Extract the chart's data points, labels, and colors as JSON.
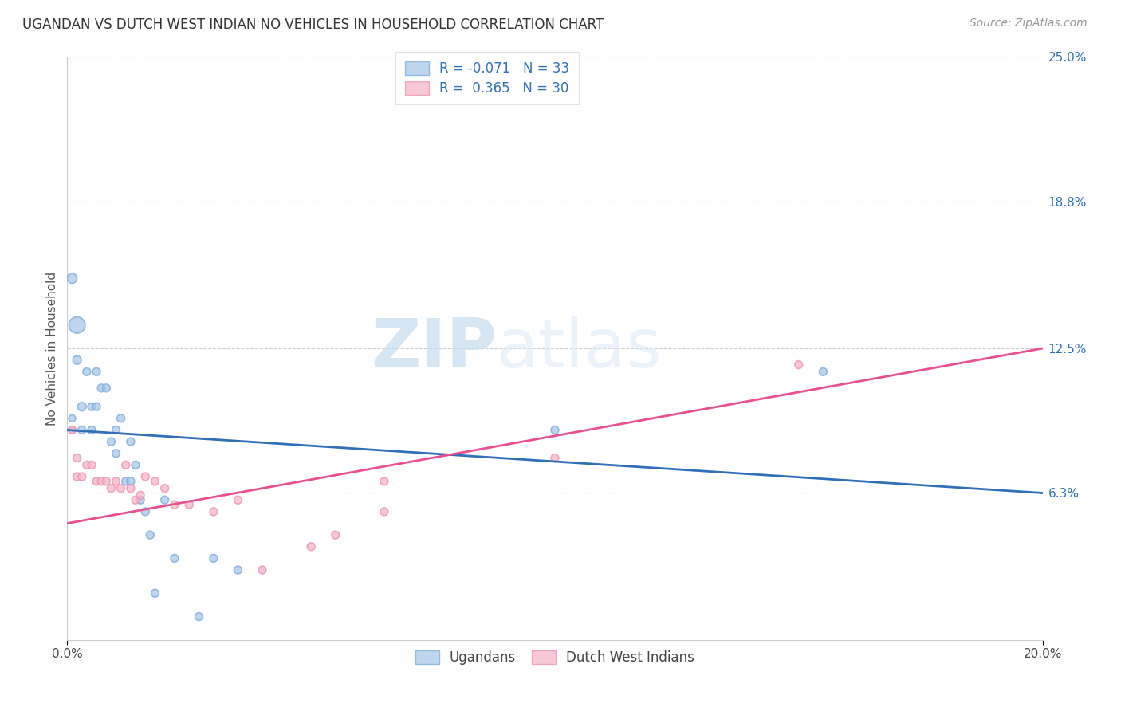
{
  "title": "UGANDAN VS DUTCH WEST INDIAN NO VEHICLES IN HOUSEHOLD CORRELATION CHART",
  "source": "Source: ZipAtlas.com",
  "ylabel": "No Vehicles in Household",
  "xmin": 0.0,
  "xmax": 0.2,
  "ymin": 0.0,
  "ymax": 0.25,
  "yticks": [
    0.063,
    0.125,
    0.188,
    0.25
  ],
  "ytick_labels": [
    "6.3%",
    "12.5%",
    "18.8%",
    "25.0%"
  ],
  "xticks": [
    0.0,
    0.2
  ],
  "xtick_labels": [
    "0.0%",
    "20.0%"
  ],
  "legend_labels": [
    "Ugandans",
    "Dutch West Indians"
  ],
  "blue_color": "#a8c8e8",
  "pink_color": "#f4b8c8",
  "blue_edge_color": "#7aacda",
  "pink_edge_color": "#f090b0",
  "blue_line_color": "#3070b8",
  "pink_line_color": "#e85090",
  "background_color": "#ffffff",
  "watermark_zip": "ZIP",
  "watermark_atlas": "atlas",
  "R_blue": -0.071,
  "N_blue": 33,
  "R_pink": 0.365,
  "N_pink": 30,
  "ugandan_x": [
    0.001,
    0.001,
    0.001,
    0.002,
    0.002,
    0.003,
    0.003,
    0.004,
    0.005,
    0.005,
    0.006,
    0.006,
    0.007,
    0.008,
    0.009,
    0.01,
    0.01,
    0.011,
    0.012,
    0.013,
    0.013,
    0.014,
    0.015,
    0.016,
    0.017,
    0.018,
    0.02,
    0.022,
    0.027,
    0.03,
    0.035,
    0.1,
    0.155
  ],
  "ugandan_y": [
    0.155,
    0.095,
    0.09,
    0.135,
    0.12,
    0.1,
    0.09,
    0.115,
    0.1,
    0.09,
    0.115,
    0.1,
    0.108,
    0.108,
    0.085,
    0.09,
    0.08,
    0.095,
    0.068,
    0.068,
    0.085,
    0.075,
    0.06,
    0.055,
    0.045,
    0.02,
    0.06,
    0.035,
    0.01,
    0.035,
    0.03,
    0.09,
    0.115
  ],
  "ugandan_size": [
    80,
    40,
    40,
    220,
    60,
    60,
    50,
    50,
    50,
    50,
    50,
    50,
    50,
    50,
    50,
    50,
    50,
    50,
    50,
    50,
    50,
    50,
    50,
    50,
    50,
    50,
    50,
    50,
    50,
    50,
    50,
    50,
    50
  ],
  "dutch_x": [
    0.001,
    0.002,
    0.002,
    0.003,
    0.004,
    0.005,
    0.006,
    0.007,
    0.008,
    0.009,
    0.01,
    0.011,
    0.012,
    0.013,
    0.014,
    0.015,
    0.016,
    0.018,
    0.02,
    0.022,
    0.025,
    0.03,
    0.035,
    0.04,
    0.05,
    0.055,
    0.065,
    0.065,
    0.1,
    0.15
  ],
  "dutch_y": [
    0.09,
    0.078,
    0.07,
    0.07,
    0.075,
    0.075,
    0.068,
    0.068,
    0.068,
    0.065,
    0.068,
    0.065,
    0.075,
    0.065,
    0.06,
    0.062,
    0.07,
    0.068,
    0.065,
    0.058,
    0.058,
    0.055,
    0.06,
    0.03,
    0.04,
    0.045,
    0.055,
    0.068,
    0.078,
    0.118
  ],
  "dutch_size": [
    50,
    50,
    50,
    50,
    50,
    50,
    50,
    50,
    50,
    50,
    50,
    50,
    50,
    50,
    50,
    50,
    50,
    50,
    50,
    50,
    50,
    50,
    50,
    50,
    50,
    50,
    50,
    50,
    50,
    50
  ],
  "blue_line_x0": 0.0,
  "blue_line_x1": 0.2,
  "blue_line_y0": 0.09,
  "blue_line_y1": 0.063,
  "pink_line_x0": 0.0,
  "pink_line_x1": 0.2,
  "pink_line_y0": 0.05,
  "pink_line_y1": 0.125
}
